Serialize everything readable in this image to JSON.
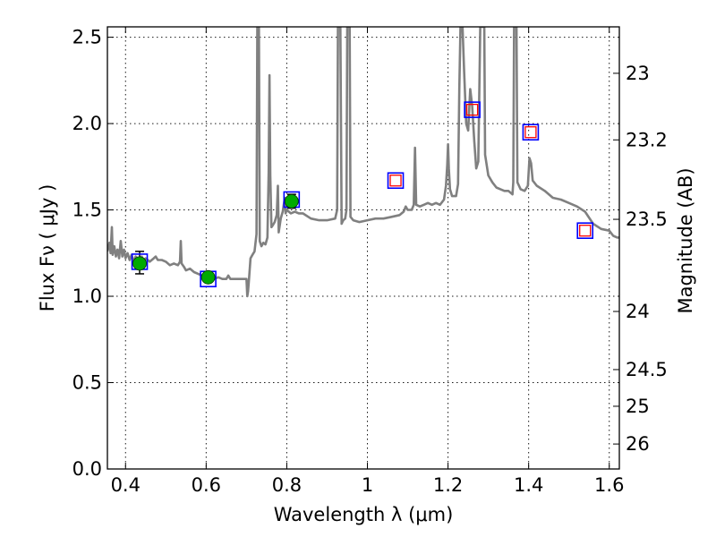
{
  "chart_data": {
    "type": "scatter",
    "title": "",
    "xlabel": "Wavelength  λ (μm)",
    "ylabel": "Flux  Fν  ( μJy )",
    "ylabel_right": "Magnitude (AB)",
    "xlim": [
      0.355,
      1.625
    ],
    "ylim": [
      0.0,
      2.56
    ],
    "grid": true,
    "x_ticks": [
      {
        "value": 0.4,
        "label": "0.4"
      },
      {
        "value": 0.6,
        "label": "0.6"
      },
      {
        "value": 0.8,
        "label": "0.8"
      },
      {
        "value": 1.0,
        "label": "1"
      },
      {
        "value": 1.2,
        "label": "1.2"
      },
      {
        "value": 1.4,
        "label": "1.4"
      },
      {
        "value": 1.6,
        "label": "1.6"
      }
    ],
    "y_ticks": [
      {
        "value": 0.0,
        "label": "0.0"
      },
      {
        "value": 0.5,
        "label": "0.5"
      },
      {
        "value": 1.0,
        "label": "1.0"
      },
      {
        "value": 1.5,
        "label": "1.5"
      },
      {
        "value": 2.0,
        "label": "2.0"
      },
      {
        "value": 2.5,
        "label": "2.5"
      }
    ],
    "right_ticks": [
      {
        "mag": 23.0,
        "label": "23"
      },
      {
        "mag": 23.2,
        "label": "23.2"
      },
      {
        "mag": 23.5,
        "label": "23.5"
      },
      {
        "mag": 24.0,
        "label": "24"
      },
      {
        "mag": 24.5,
        "label": "24.5"
      },
      {
        "mag": 25.0,
        "label": "25"
      },
      {
        "mag": 26.0,
        "label": "26"
      }
    ],
    "series": [
      {
        "kind": "model-spectrum-line",
        "color": "#808080",
        "points": [
          [
            0.355,
            1.26
          ],
          [
            0.36,
            1.31
          ],
          [
            0.363,
            1.25
          ],
          [
            0.366,
            1.4
          ],
          [
            0.368,
            1.24
          ],
          [
            0.372,
            1.29
          ],
          [
            0.376,
            1.23
          ],
          [
            0.38,
            1.27
          ],
          [
            0.384,
            1.22
          ],
          [
            0.388,
            1.32
          ],
          [
            0.392,
            1.23
          ],
          [
            0.396,
            1.27
          ],
          [
            0.4,
            1.22
          ],
          [
            0.405,
            1.25
          ],
          [
            0.41,
            1.21
          ],
          [
            0.415,
            1.24
          ],
          [
            0.42,
            1.2
          ],
          [
            0.425,
            1.23
          ],
          [
            0.43,
            1.22
          ],
          [
            0.435,
            1.2
          ],
          [
            0.44,
            1.23
          ],
          [
            0.445,
            1.21
          ],
          [
            0.45,
            1.22
          ],
          [
            0.46,
            1.2
          ],
          [
            0.47,
            1.22
          ],
          [
            0.475,
            1.23
          ],
          [
            0.48,
            1.21
          ],
          [
            0.49,
            1.21
          ],
          [
            0.5,
            1.2
          ],
          [
            0.51,
            1.18
          ],
          [
            0.52,
            1.19
          ],
          [
            0.53,
            1.18
          ],
          [
            0.535,
            1.2
          ],
          [
            0.537,
            1.32
          ],
          [
            0.539,
            1.19
          ],
          [
            0.545,
            1.17
          ],
          [
            0.55,
            1.15
          ],
          [
            0.56,
            1.16
          ],
          [
            0.57,
            1.14
          ],
          [
            0.58,
            1.13
          ],
          [
            0.59,
            1.12
          ],
          [
            0.6,
            1.12
          ],
          [
            0.61,
            1.11
          ],
          [
            0.62,
            1.1
          ],
          [
            0.63,
            1.11
          ],
          [
            0.64,
            1.1
          ],
          [
            0.65,
            1.1
          ],
          [
            0.655,
            1.12
          ],
          [
            0.66,
            1.1
          ],
          [
            0.67,
            1.1
          ],
          [
            0.68,
            1.1
          ],
          [
            0.69,
            1.1
          ],
          [
            0.7,
            1.1
          ],
          [
            0.702,
            1.0
          ],
          [
            0.704,
            1.03
          ],
          [
            0.706,
            1.09
          ],
          [
            0.71,
            1.22
          ],
          [
            0.715,
            1.24
          ],
          [
            0.72,
            1.26
          ],
          [
            0.725,
            1.36
          ],
          [
            0.727,
            2.56
          ],
          [
            0.731,
            2.56
          ],
          [
            0.733,
            1.32
          ],
          [
            0.737,
            1.29
          ],
          [
            0.742,
            1.31
          ],
          [
            0.747,
            1.3
          ],
          [
            0.752,
            1.34
          ],
          [
            0.755,
            1.72
          ],
          [
            0.757,
            2.28
          ],
          [
            0.759,
            1.7
          ],
          [
            0.762,
            1.4
          ],
          [
            0.765,
            1.41
          ],
          [
            0.77,
            1.43
          ],
          [
            0.775,
            1.47
          ],
          [
            0.778,
            1.64
          ],
          [
            0.78,
            1.37
          ],
          [
            0.785,
            1.45
          ],
          [
            0.79,
            1.49
          ],
          [
            0.795,
            1.57
          ],
          [
            0.797,
            1.48
          ],
          [
            0.8,
            1.5
          ],
          [
            0.81,
            1.48
          ],
          [
            0.82,
            1.49
          ],
          [
            0.83,
            1.48
          ],
          [
            0.84,
            1.48
          ],
          [
            0.86,
            1.45
          ],
          [
            0.88,
            1.44
          ],
          [
            0.9,
            1.44
          ],
          [
            0.92,
            1.45
          ],
          [
            0.925,
            1.5
          ],
          [
            0.927,
            2.56
          ],
          [
            0.933,
            2.56
          ],
          [
            0.936,
            1.42
          ],
          [
            0.94,
            1.44
          ],
          [
            0.945,
            1.45
          ],
          [
            0.948,
            1.5
          ],
          [
            0.95,
            2.56
          ],
          [
            0.956,
            2.56
          ],
          [
            0.958,
            1.46
          ],
          [
            0.965,
            1.44
          ],
          [
            0.98,
            1.43
          ],
          [
            1.0,
            1.44
          ],
          [
            1.02,
            1.45
          ],
          [
            1.04,
            1.45
          ],
          [
            1.06,
            1.46
          ],
          [
            1.08,
            1.47
          ],
          [
            1.09,
            1.49
          ],
          [
            1.095,
            1.52
          ],
          [
            1.1,
            1.5
          ],
          [
            1.11,
            1.5
          ],
          [
            1.115,
            1.53
          ],
          [
            1.118,
            1.86
          ],
          [
            1.121,
            1.53
          ],
          [
            1.13,
            1.52
          ],
          [
            1.14,
            1.53
          ],
          [
            1.15,
            1.54
          ],
          [
            1.16,
            1.53
          ],
          [
            1.17,
            1.54
          ],
          [
            1.18,
            1.53
          ],
          [
            1.19,
            1.56
          ],
          [
            1.195,
            1.64
          ],
          [
            1.198,
            1.76
          ],
          [
            1.2,
            1.88
          ],
          [
            1.202,
            1.74
          ],
          [
            1.205,
            1.62
          ],
          [
            1.21,
            1.58
          ],
          [
            1.22,
            1.58
          ],
          [
            1.225,
            1.65
          ],
          [
            1.228,
            2.2
          ],
          [
            1.231,
            2.56
          ],
          [
            1.236,
            2.56
          ],
          [
            1.24,
            2.3
          ],
          [
            1.245,
            2.0
          ],
          [
            1.25,
            1.96
          ],
          [
            1.255,
            2.2
          ],
          [
            1.26,
            2.1
          ],
          [
            1.265,
            1.9
          ],
          [
            1.27,
            1.74
          ],
          [
            1.275,
            1.78
          ],
          [
            1.28,
            2.56
          ],
          [
            1.29,
            2.56
          ],
          [
            1.292,
            1.82
          ],
          [
            1.3,
            1.7
          ],
          [
            1.31,
            1.66
          ],
          [
            1.32,
            1.63
          ],
          [
            1.33,
            1.62
          ],
          [
            1.34,
            1.61
          ],
          [
            1.35,
            1.61
          ],
          [
            1.36,
            1.59
          ],
          [
            1.362,
            1.66
          ],
          [
            1.364,
            2.56
          ],
          [
            1.37,
            2.56
          ],
          [
            1.372,
            1.66
          ],
          [
            1.38,
            1.62
          ],
          [
            1.39,
            1.61
          ],
          [
            1.398,
            1.64
          ],
          [
            1.402,
            1.8
          ],
          [
            1.406,
            1.77
          ],
          [
            1.41,
            1.67
          ],
          [
            1.42,
            1.64
          ],
          [
            1.44,
            1.61
          ],
          [
            1.46,
            1.57
          ],
          [
            1.48,
            1.56
          ],
          [
            1.5,
            1.54
          ],
          [
            1.52,
            1.52
          ],
          [
            1.54,
            1.49
          ],
          [
            1.56,
            1.42
          ],
          [
            1.58,
            1.39
          ],
          [
            1.6,
            1.38
          ],
          [
            1.61,
            1.35
          ],
          [
            1.62,
            1.34
          ],
          [
            1.625,
            1.34
          ]
        ]
      },
      {
        "kind": "open-squares",
        "color": "#0000ff",
        "points": [
          [
            0.435,
            1.2
          ],
          [
            0.605,
            1.1
          ],
          [
            0.812,
            1.56
          ],
          [
            1.07,
            1.67
          ],
          [
            1.26,
            2.08
          ],
          [
            1.405,
            1.95
          ],
          [
            1.54,
            1.38
          ]
        ]
      },
      {
        "kind": "open-squares",
        "color": "#ff0000",
        "points": [
          [
            1.07,
            1.67
          ],
          [
            1.26,
            2.08
          ],
          [
            1.405,
            1.95
          ],
          [
            1.54,
            1.38
          ]
        ]
      },
      {
        "kind": "filled-circles",
        "color": "#00aa00",
        "points": [
          [
            0.435,
            1.19
          ],
          [
            0.605,
            1.11
          ],
          [
            0.812,
            1.55
          ]
        ]
      }
    ],
    "error_bars": [
      {
        "x": 0.435,
        "y_low": 1.13,
        "y_high": 1.26
      },
      {
        "x": 0.812,
        "y_low": 1.51,
        "y_high": 1.59
      }
    ]
  }
}
